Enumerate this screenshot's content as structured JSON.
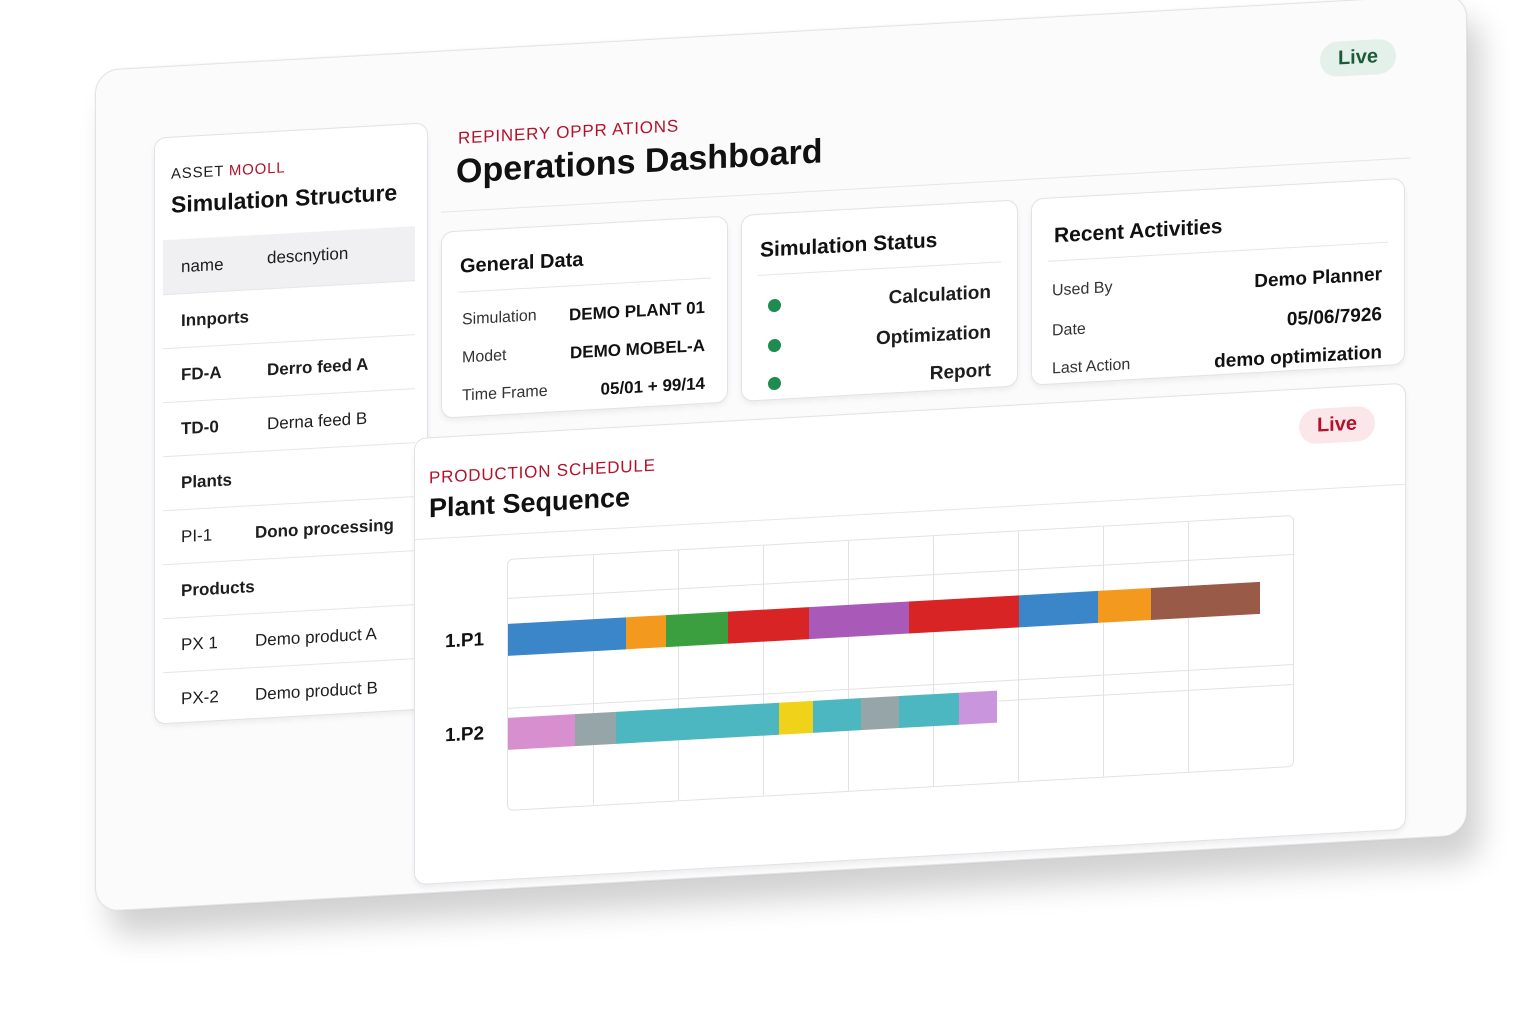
{
  "header": {
    "eyebrow": "REPINERY OPPR ATIONS",
    "title": "Operations Dashboard",
    "live_badge": "Live"
  },
  "sidebar": {
    "eyebrow_prefix": "ASSET ",
    "eyebrow_accent": "MOOLL",
    "title": "Simulation Structure",
    "columns": [
      "name",
      "descnytion"
    ],
    "rows": [
      {
        "group": "Innports"
      },
      {
        "name": "FD-A",
        "desc": "Derro feed A"
      },
      {
        "name": "TD-0",
        "desc": "Derna feed B"
      },
      {
        "group": "Plants"
      },
      {
        "name": "PI-1",
        "desc": "Dono processing"
      },
      {
        "group": "Products"
      },
      {
        "name": "PX 1",
        "desc": "Demo product A"
      },
      {
        "name": "PX-2",
        "desc": "Demo product B"
      }
    ]
  },
  "general_data": {
    "title": "General Data",
    "rows": [
      {
        "label": "Simulation",
        "value": "DEMO PLANT 01"
      },
      {
        "label": "Modet",
        "value": "DEMO MOBEL-A"
      },
      {
        "label": "Time Frame",
        "value": "05/01 + 99/14"
      }
    ]
  },
  "simulation_status": {
    "title": "Simulation Status",
    "items": [
      "Calculation",
      "Optimization",
      "Report"
    ],
    "dot_color": "#1e8c4e"
  },
  "recent_activities": {
    "title": "Recent Activities",
    "rows": [
      {
        "label": "Used By",
        "value": "Demo Planner"
      },
      {
        "label": "Date",
        "value": "05/06/7926"
      },
      {
        "label": "Last Action",
        "value": "demo optimization"
      }
    ]
  },
  "schedule": {
    "eyebrow": "PRODUCTION SCHEDULE",
    "title": "Plant Sequence",
    "live_badge": "Live",
    "lanes": [
      {
        "label": "1.P1",
        "segments": [
          {
            "start": 0,
            "end": 15.7,
            "color": "#3a86c8"
          },
          {
            "start": 15.7,
            "end": 21,
            "color": "#f39a1e"
          },
          {
            "start": 21,
            "end": 29.3,
            "color": "#3b9e3f"
          },
          {
            "start": 29.3,
            "end": 40,
            "color": "#d92425"
          },
          {
            "start": 40,
            "end": 53.3,
            "color": "#a95ab8"
          },
          {
            "start": 53.3,
            "end": 67.9,
            "color": "#d92425"
          },
          {
            "start": 67.9,
            "end": 78.5,
            "color": "#3a86c8"
          },
          {
            "start": 78.5,
            "end": 85.5,
            "color": "#f39a1e"
          },
          {
            "start": 85.5,
            "end": 100,
            "color": "#9a5a48"
          }
        ]
      },
      {
        "label": "1.P2",
        "segments": [
          {
            "start": 0,
            "end": 8.9,
            "color": "#d88fd0"
          },
          {
            "start": 8.9,
            "end": 14.3,
            "color": "#95a5a8"
          },
          {
            "start": 14.3,
            "end": 36,
            "color": "#4cb6c1"
          },
          {
            "start": 36,
            "end": 40.5,
            "color": "#f0d21a"
          },
          {
            "start": 40.5,
            "end": 47,
            "color": "#4cb6c1"
          },
          {
            "start": 47,
            "end": 52,
            "color": "#95a5a8"
          },
          {
            "start": 52,
            "end": 60,
            "color": "#4cb6c1"
          },
          {
            "start": 60,
            "end": 65,
            "color": "#c996dd"
          }
        ]
      }
    ]
  },
  "colors": {
    "accent_red": "#b3122a",
    "live_green_bg": "#e3f1ea",
    "live_green_text": "#1d5a3a",
    "live_red_bg": "#fbe7ea",
    "live_red_text": "#b3122a"
  }
}
